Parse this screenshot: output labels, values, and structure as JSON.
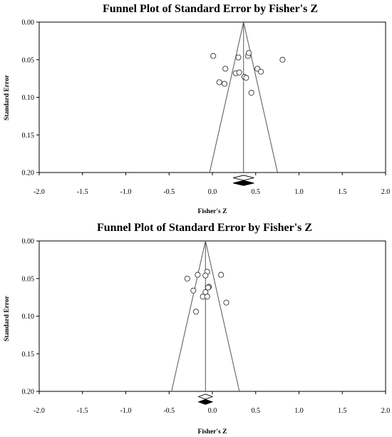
{
  "chart_data": [
    {
      "type": "scatter",
      "title": "Funnel Plot of Standard Error by Fisher's Z",
      "xlabel": "Fisher's Z",
      "ylabel": "Standard Error",
      "xlim": [
        -2.0,
        2.0
      ],
      "ylim": [
        0.0,
        0.2
      ],
      "y_inverted": true,
      "xticks": [
        "-2.0",
        "-1.5",
        "-1.0",
        "-0.5",
        "0.0",
        "0.5",
        "1.0",
        "1.5",
        "2.0"
      ],
      "yticks": [
        "0.00",
        "0.05",
        "0.10",
        "0.15",
        "0.20"
      ],
      "summary_z": 0.36,
      "funnel_se_max": 0.2,
      "diamond_se": 0.207,
      "diamond_half_width": 0.12,
      "filled_diamond_se": 0.214,
      "filled_diamond_half_width": 0.12,
      "points": [
        {
          "x": 0.01,
          "y": 0.045
        },
        {
          "x": 0.3,
          "y": 0.047
        },
        {
          "x": 0.41,
          "y": 0.045
        },
        {
          "x": 0.42,
          "y": 0.041
        },
        {
          "x": 0.81,
          "y": 0.05
        },
        {
          "x": 0.15,
          "y": 0.062
        },
        {
          "x": 0.52,
          "y": 0.062
        },
        {
          "x": 0.56,
          "y": 0.066
        },
        {
          "x": 0.27,
          "y": 0.068
        },
        {
          "x": 0.31,
          "y": 0.067
        },
        {
          "x": 0.37,
          "y": 0.073
        },
        {
          "x": 0.39,
          "y": 0.074
        },
        {
          "x": 0.08,
          "y": 0.08
        },
        {
          "x": 0.14,
          "y": 0.082
        },
        {
          "x": 0.45,
          "y": 0.094
        }
      ]
    },
    {
      "type": "scatter",
      "title": "Funnel Plot of Standard Error by Fisher's Z",
      "xlabel": "Fisher's Z",
      "ylabel": "Standard Error",
      "xlim": [
        -2.0,
        2.0
      ],
      "ylim": [
        0.0,
        0.2
      ],
      "y_inverted": true,
      "xticks": [
        "-2.0",
        "-1.5",
        "-1.0",
        "-0.5",
        "0.0",
        "0.5",
        "1.0",
        "1.5",
        "2.0"
      ],
      "yticks": [
        "0.00",
        "0.05",
        "0.10",
        "0.15",
        "0.20"
      ],
      "summary_z": -0.08,
      "funnel_se_max": 0.2,
      "diamond_se": 0.207,
      "diamond_half_width": 0.08,
      "filled_diamond_se": 0.214,
      "filled_diamond_half_width": 0.08,
      "points": [
        {
          "x": -0.29,
          "y": 0.05
        },
        {
          "x": -0.17,
          "y": 0.045
        },
        {
          "x": -0.06,
          "y": 0.041
        },
        {
          "x": 0.1,
          "y": 0.045
        },
        {
          "x": -0.08,
          "y": 0.046
        },
        {
          "x": -0.04,
          "y": 0.061
        },
        {
          "x": -0.05,
          "y": 0.062
        },
        {
          "x": -0.08,
          "y": 0.068
        },
        {
          "x": -0.22,
          "y": 0.066
        },
        {
          "x": -0.11,
          "y": 0.074
        },
        {
          "x": -0.06,
          "y": 0.074
        },
        {
          "x": 0.16,
          "y": 0.082
        },
        {
          "x": -0.19,
          "y": 0.094
        }
      ]
    }
  ]
}
